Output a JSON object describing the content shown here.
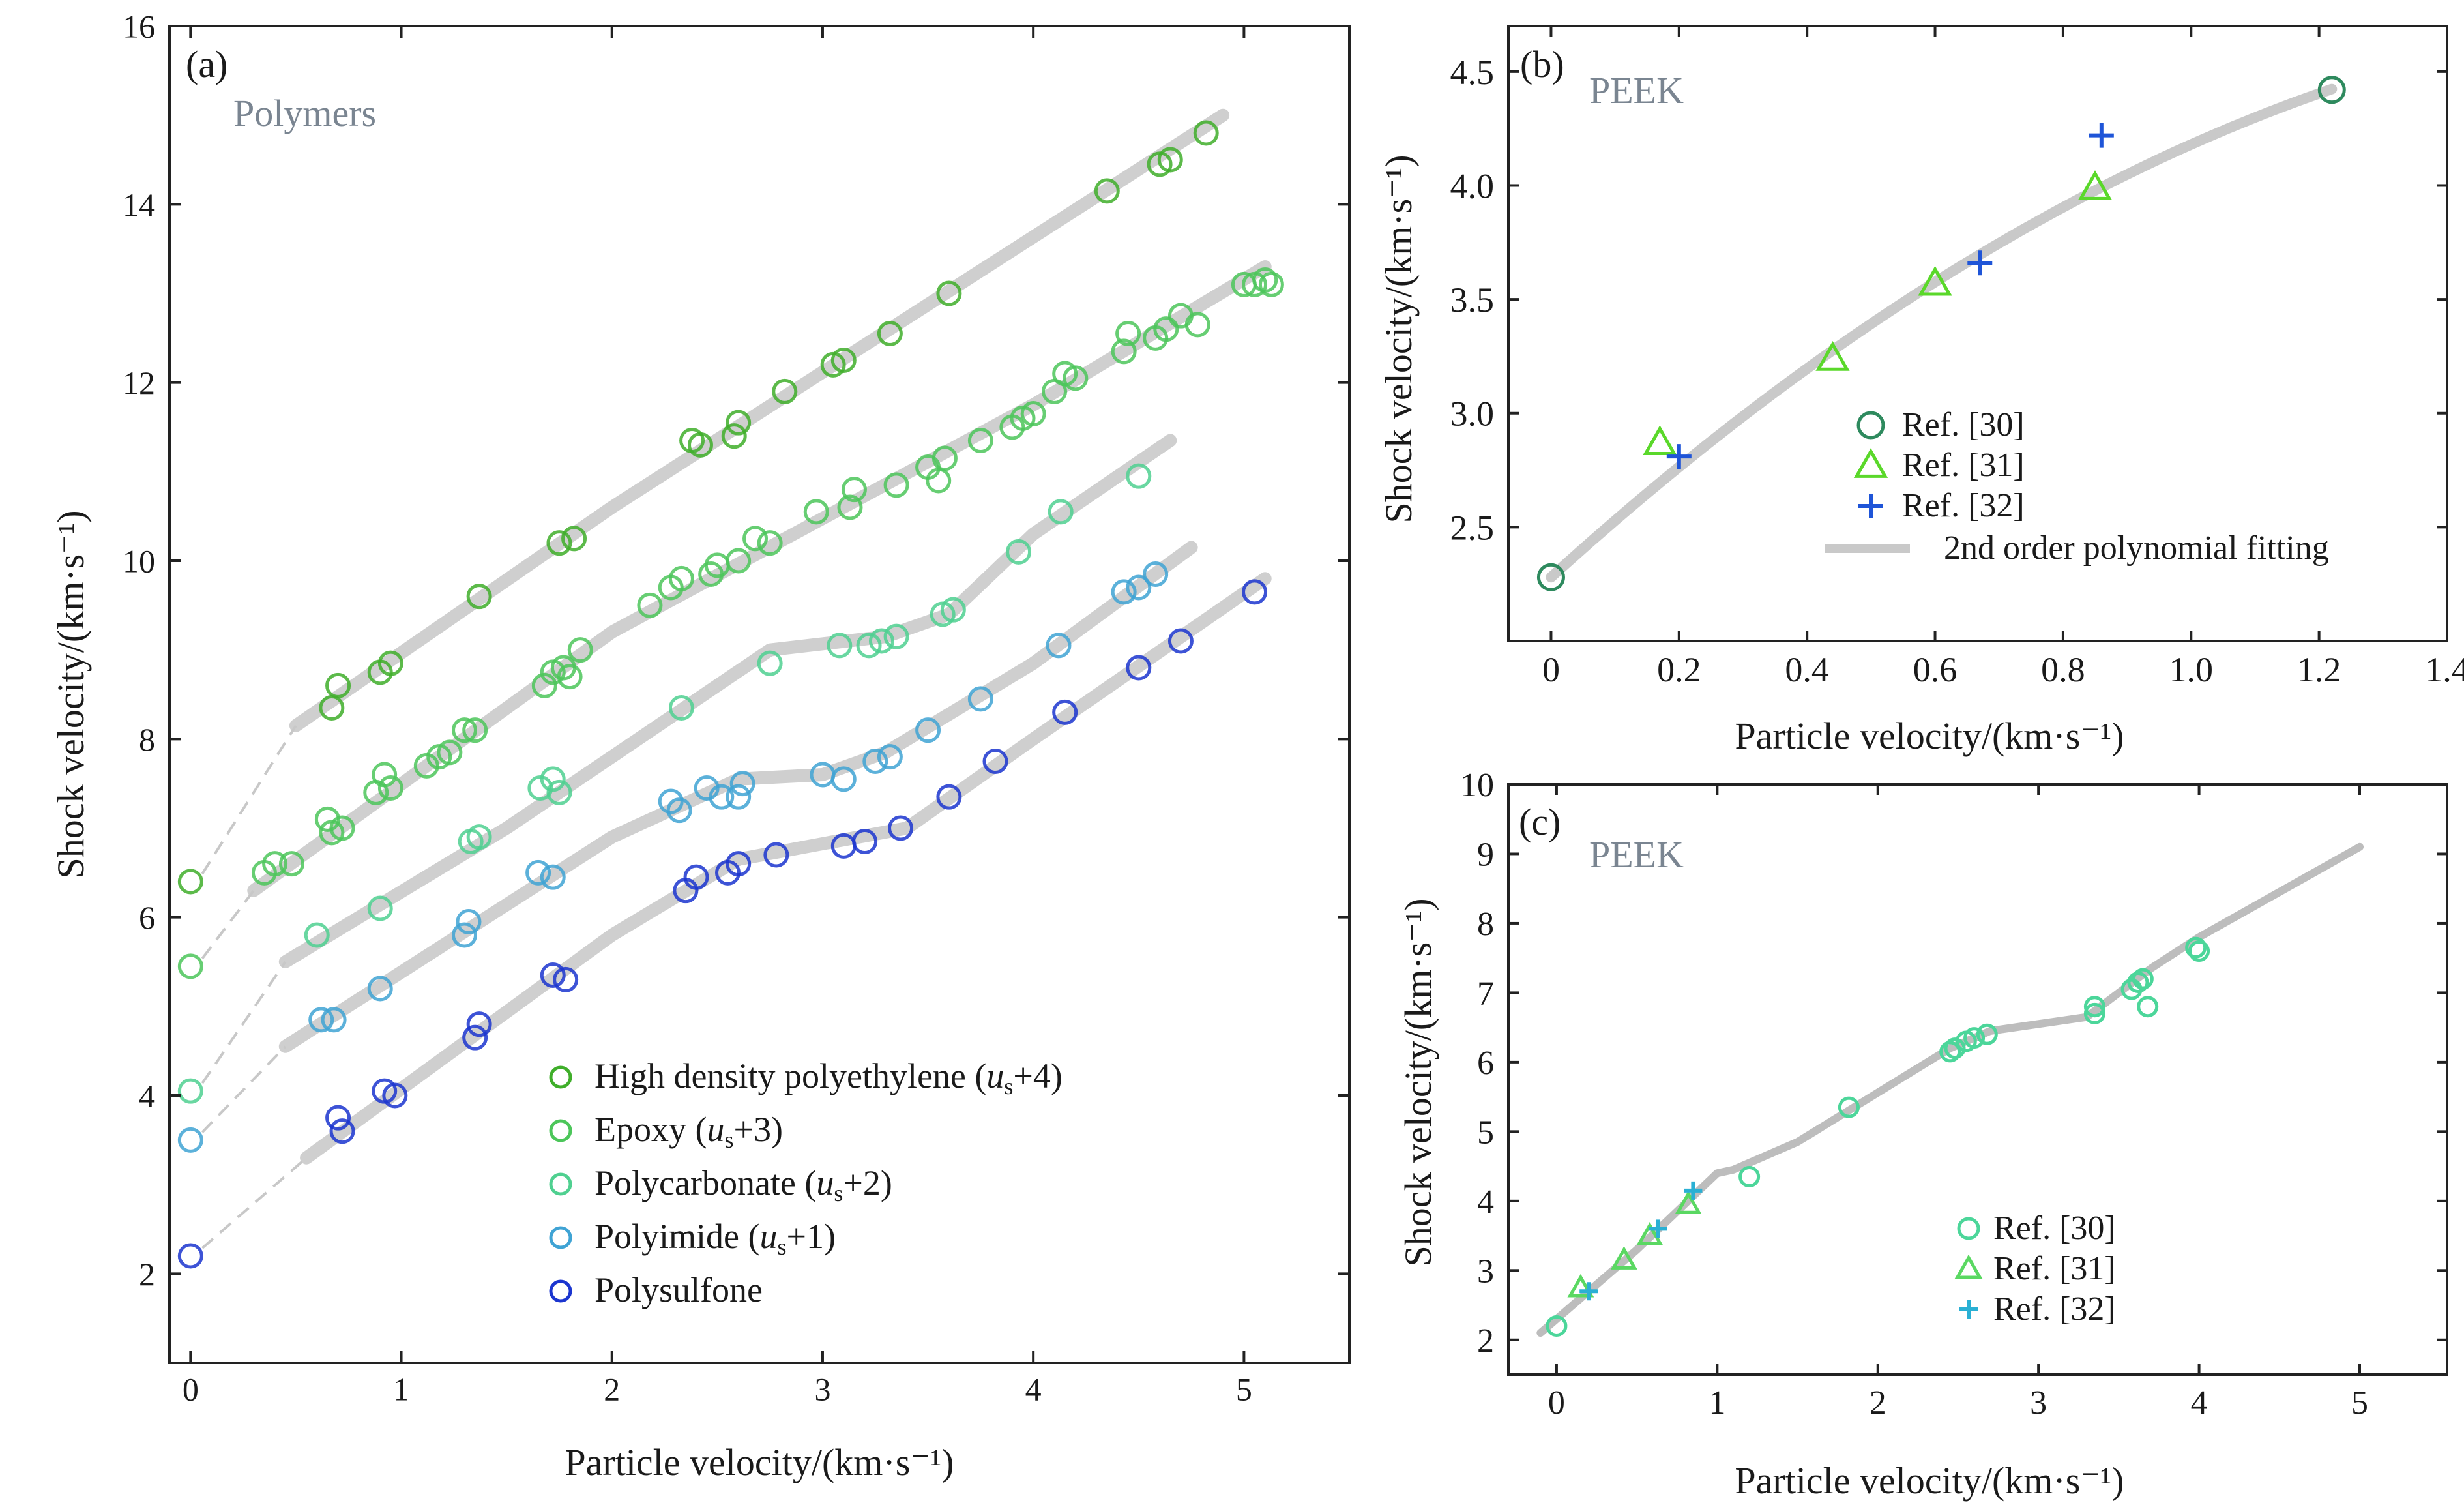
{
  "chart_data": [
    {
      "id": "a",
      "type": "scatter",
      "panel_label": "(a)",
      "annotation": "Polymers",
      "xlabel": "Particle velocity/(km·s⁻¹)",
      "ylabel": "Shock velocity/(km·s⁻¹)",
      "xlim": [
        -0.1,
        5.5
      ],
      "ylim": [
        1,
        16
      ],
      "xticks": [
        0,
        1,
        2,
        3,
        4,
        5
      ],
      "yticks": [
        2,
        4,
        6,
        8,
        10,
        12,
        14,
        16
      ],
      "legend_position": "bottom-right",
      "series": [
        {
          "name": "High density polyethylene (us+4)",
          "legend": {
            "pre": "High density polyethylene (",
            "italic": "u",
            "sub": "s",
            "post": "+4)"
          },
          "color": "#3fae2a",
          "points": [
            [
              0,
              6.4
            ],
            [
              0.67,
              8.35
            ],
            [
              0.7,
              8.6
            ],
            [
              0.9,
              8.75
            ],
            [
              0.95,
              8.85
            ],
            [
              1.37,
              9.6
            ],
            [
              1.75,
              10.2
            ],
            [
              1.82,
              10.25
            ],
            [
              2.38,
              11.35
            ],
            [
              2.42,
              11.3
            ],
            [
              2.58,
              11.4
            ],
            [
              2.6,
              11.55
            ],
            [
              2.82,
              11.9
            ],
            [
              3.05,
              12.2
            ],
            [
              3.1,
              12.25
            ],
            [
              3.32,
              12.55
            ],
            [
              3.6,
              13.0
            ],
            [
              4.35,
              14.15
            ],
            [
              4.6,
              14.45
            ],
            [
              4.65,
              14.5
            ],
            [
              4.82,
              14.8
            ]
          ],
          "fit": [
            [
              0.5,
              8.15
            ],
            [
              2.0,
              10.6
            ],
            [
              4.9,
              15.0
            ]
          ]
        },
        {
          "name": "Epoxy (us+3)",
          "legend": {
            "pre": "Epoxy (",
            "italic": "u",
            "sub": "s",
            "post": "+3)"
          },
          "color": "#4cc65a",
          "points": [
            [
              0,
              5.45
            ],
            [
              0.35,
              6.5
            ],
            [
              0.4,
              6.6
            ],
            [
              0.48,
              6.6
            ],
            [
              0.65,
              7.1
            ],
            [
              0.67,
              6.95
            ],
            [
              0.72,
              7.0
            ],
            [
              0.88,
              7.4
            ],
            [
              0.92,
              7.6
            ],
            [
              0.95,
              7.45
            ],
            [
              1.12,
              7.7
            ],
            [
              1.18,
              7.8
            ],
            [
              1.23,
              7.85
            ],
            [
              1.3,
              8.1
            ],
            [
              1.35,
              8.1
            ],
            [
              1.68,
              8.6
            ],
            [
              1.72,
              8.75
            ],
            [
              1.77,
              8.8
            ],
            [
              1.8,
              8.7
            ],
            [
              1.85,
              9.0
            ],
            [
              2.18,
              9.5
            ],
            [
              2.28,
              9.7
            ],
            [
              2.33,
              9.8
            ],
            [
              2.47,
              9.85
            ],
            [
              2.5,
              9.95
            ],
            [
              2.6,
              10.0
            ],
            [
              2.68,
              10.25
            ],
            [
              2.75,
              10.2
            ],
            [
              2.97,
              10.55
            ],
            [
              3.13,
              10.6
            ],
            [
              3.15,
              10.8
            ],
            [
              3.35,
              10.85
            ],
            [
              3.5,
              11.05
            ],
            [
              3.55,
              10.9
            ],
            [
              3.58,
              11.15
            ],
            [
              3.75,
              11.35
            ],
            [
              3.9,
              11.5
            ],
            [
              3.95,
              11.6
            ],
            [
              4.0,
              11.65
            ],
            [
              4.1,
              11.9
            ],
            [
              4.15,
              12.1
            ],
            [
              4.2,
              12.05
            ],
            [
              4.43,
              12.35
            ],
            [
              4.45,
              12.55
            ],
            [
              4.58,
              12.5
            ],
            [
              4.63,
              12.6
            ],
            [
              4.7,
              12.75
            ],
            [
              4.78,
              12.65
            ],
            [
              5.0,
              13.1
            ],
            [
              5.05,
              13.1
            ],
            [
              5.1,
              13.15
            ],
            [
              5.13,
              13.1
            ]
          ],
          "fit": [
            [
              0.3,
              6.3
            ],
            [
              2.0,
              9.2
            ],
            [
              4.0,
              11.75
            ],
            [
              5.1,
              13.3
            ]
          ]
        },
        {
          "name": "Polycarbonate (us+2)",
          "legend": {
            "pre": "Polycarbonate (",
            "italic": "u",
            "sub": "s",
            "post": "+2)"
          },
          "color": "#4fd090",
          "points": [
            [
              0,
              4.05
            ],
            [
              0.6,
              5.8
            ],
            [
              0.9,
              6.1
            ],
            [
              1.33,
              6.85
            ],
            [
              1.37,
              6.9
            ],
            [
              1.66,
              7.45
            ],
            [
              1.72,
              7.55
            ],
            [
              1.75,
              7.4
            ],
            [
              2.33,
              8.35
            ],
            [
              2.75,
              8.85
            ],
            [
              3.08,
              9.05
            ],
            [
              3.22,
              9.05
            ],
            [
              3.28,
              9.1
            ],
            [
              3.35,
              9.15
            ],
            [
              3.57,
              9.4
            ],
            [
              3.62,
              9.45
            ],
            [
              3.93,
              10.1
            ],
            [
              4.13,
              10.55
            ],
            [
              4.5,
              10.95
            ]
          ],
          "fit": [
            [
              0.45,
              5.5
            ],
            [
              1.5,
              7.0
            ],
            [
              2.5,
              8.6
            ],
            [
              2.75,
              9.0
            ],
            [
              3.3,
              9.15
            ],
            [
              3.6,
              9.4
            ],
            [
              4.0,
              10.3
            ],
            [
              4.65,
              11.35
            ]
          ]
        },
        {
          "name": "Polyimide (us+1)",
          "legend": {
            "pre": "Polyimide (",
            "italic": "u",
            "sub": "s",
            "post": "+1)"
          },
          "color": "#3fa3d4",
          "points": [
            [
              0,
              3.5
            ],
            [
              0.62,
              4.85
            ],
            [
              0.68,
              4.85
            ],
            [
              0.9,
              5.2
            ],
            [
              1.3,
              5.8
            ],
            [
              1.32,
              5.95
            ],
            [
              1.65,
              6.5
            ],
            [
              1.72,
              6.45
            ],
            [
              2.28,
              7.3
            ],
            [
              2.32,
              7.2
            ],
            [
              2.45,
              7.45
            ],
            [
              2.52,
              7.35
            ],
            [
              2.6,
              7.35
            ],
            [
              2.62,
              7.5
            ],
            [
              3.0,
              7.6
            ],
            [
              3.1,
              7.55
            ],
            [
              3.25,
              7.75
            ],
            [
              3.32,
              7.8
            ],
            [
              3.5,
              8.1
            ],
            [
              3.75,
              8.45
            ],
            [
              4.12,
              9.05
            ],
            [
              4.43,
              9.65
            ],
            [
              4.5,
              9.7
            ],
            [
              4.58,
              9.85
            ]
          ],
          "fit": [
            [
              0.45,
              4.55
            ],
            [
              2.0,
              6.9
            ],
            [
              2.6,
              7.55
            ],
            [
              3.0,
              7.6
            ],
            [
              3.3,
              7.85
            ],
            [
              4.0,
              8.85
            ],
            [
              4.75,
              10.15
            ]
          ]
        },
        {
          "name": "Polysulfone",
          "legend": {
            "pre": "Polysulfone",
            "italic": "",
            "sub": "",
            "post": ""
          },
          "color": "#1b35cf",
          "points": [
            [
              0,
              2.2
            ],
            [
              0.7,
              3.75
            ],
            [
              0.72,
              3.6
            ],
            [
              0.92,
              4.05
            ],
            [
              0.97,
              4.0
            ],
            [
              1.35,
              4.65
            ],
            [
              1.37,
              4.8
            ],
            [
              1.72,
              5.35
            ],
            [
              1.78,
              5.3
            ],
            [
              2.35,
              6.3
            ],
            [
              2.4,
              6.45
            ],
            [
              2.55,
              6.5
            ],
            [
              2.6,
              6.6
            ],
            [
              2.78,
              6.7
            ],
            [
              3.1,
              6.8
            ],
            [
              3.2,
              6.85
            ],
            [
              3.37,
              7.0
            ],
            [
              3.6,
              7.35
            ],
            [
              3.82,
              7.75
            ],
            [
              4.15,
              8.3
            ],
            [
              4.5,
              8.8
            ],
            [
              4.7,
              9.1
            ],
            [
              5.05,
              9.65
            ]
          ],
          "fit": [
            [
              0.55,
              3.3
            ],
            [
              2.0,
              5.8
            ],
            [
              2.6,
              6.65
            ],
            [
              3.4,
              7.0
            ],
            [
              4.0,
              8.0
            ],
            [
              5.1,
              9.8
            ]
          ]
        }
      ]
    },
    {
      "id": "b",
      "type": "scatter",
      "panel_label": "(b)",
      "annotation": "PEEK",
      "xlabel": "Particle velocity/(km·s⁻¹)",
      "ylabel": "Shock velocity/(km·s⁻¹)",
      "xlim": [
        -0.1,
        1.4
      ],
      "ylim": [
        2.0,
        4.7
      ],
      "xticks": [
        0,
        0.2,
        0.4,
        0.6,
        0.8,
        1.0,
        1.2,
        1.4
      ],
      "xtick_labels": [
        "0",
        "0.2",
        "0.4",
        "0.6",
        "0.8",
        "1.0",
        "1.2",
        "1.4"
      ],
      "yticks": [
        2.5,
        3.0,
        3.5,
        4.0,
        4.5
      ],
      "ytick_labels": [
        "2.5",
        "3.0",
        "3.5",
        "4.0",
        "4.5"
      ],
      "legend_position": "center",
      "series": [
        {
          "name": "Ref. [30]",
          "marker": "circle",
          "color": "#2e8a5e",
          "points": [
            [
              0,
              2.28
            ],
            [
              1.22,
              4.42
            ]
          ]
        },
        {
          "name": "Ref. [31]",
          "marker": "triangle",
          "color": "#5ad82a",
          "points": [
            [
              0.17,
              2.87
            ],
            [
              0.44,
              3.24
            ],
            [
              0.6,
              3.57
            ],
            [
              0.85,
              3.99
            ]
          ]
        },
        {
          "name": "Ref. [32]",
          "marker": "plus",
          "color": "#1f55d8",
          "points": [
            [
              0.2,
              2.81
            ],
            [
              0.67,
              3.66
            ],
            [
              0.86,
              4.22
            ]
          ]
        }
      ],
      "fit": {
        "name": "2nd order polynomial fitting",
        "color": "#c9c9c9",
        "coefficients": [
          2.28,
          2.55,
          -0.65
        ],
        "x_range": [
          0,
          1.22
        ]
      }
    },
    {
      "id": "c",
      "type": "scatter",
      "panel_label": "(c)",
      "annotation": "PEEK",
      "xlabel": "Particle velocity/(km·s⁻¹)",
      "ylabel": "Shock velocity/(km·s⁻¹)",
      "xlim": [
        -0.5,
        5.5
      ],
      "ylim": [
        1.5,
        10
      ],
      "xticks": [
        0,
        1,
        2,
        3,
        4,
        5
      ],
      "yticks": [
        2,
        3,
        4,
        5,
        6,
        7,
        8,
        9,
        10
      ],
      "legend_position": "bottom-right",
      "series": [
        {
          "name": "Ref. [30]",
          "marker": "circle",
          "color": "#4cd69a",
          "points": [
            [
              0,
              2.2
            ],
            [
              1.2,
              4.35
            ],
            [
              1.82,
              5.35
            ],
            [
              2.45,
              6.15
            ],
            [
              2.48,
              6.2
            ],
            [
              2.55,
              6.3
            ],
            [
              2.6,
              6.35
            ],
            [
              2.68,
              6.4
            ],
            [
              3.35,
              6.7
            ],
            [
              3.35,
              6.8
            ],
            [
              3.58,
              7.05
            ],
            [
              3.62,
              7.15
            ],
            [
              3.65,
              7.2
            ],
            [
              3.68,
              6.8
            ],
            [
              3.98,
              7.65
            ],
            [
              4.0,
              7.6
            ]
          ]
        },
        {
          "name": "Ref. [31]",
          "marker": "triangle",
          "color": "#5ad862",
          "points": [
            [
              0.15,
              2.75
            ],
            [
              0.42,
              3.15
            ],
            [
              0.58,
              3.5
            ],
            [
              0.82,
              3.95
            ]
          ]
        },
        {
          "name": "Ref. [32]",
          "marker": "plus",
          "color": "#2ab0d4",
          "points": [
            [
              0.2,
              2.7
            ],
            [
              0.63,
              3.6
            ],
            [
              0.85,
              4.15
            ]
          ]
        }
      ],
      "fit_points": [
        [
          -0.1,
          2.1
        ],
        [
          0.5,
          3.3
        ],
        [
          1.0,
          4.4
        ],
        [
          1.1,
          4.45
        ],
        [
          1.5,
          4.85
        ],
        [
          2.45,
          6.2
        ],
        [
          2.7,
          6.45
        ],
        [
          3.3,
          6.65
        ],
        [
          3.7,
          7.35
        ],
        [
          4.0,
          7.8
        ],
        [
          5.0,
          9.1
        ]
      ]
    }
  ]
}
